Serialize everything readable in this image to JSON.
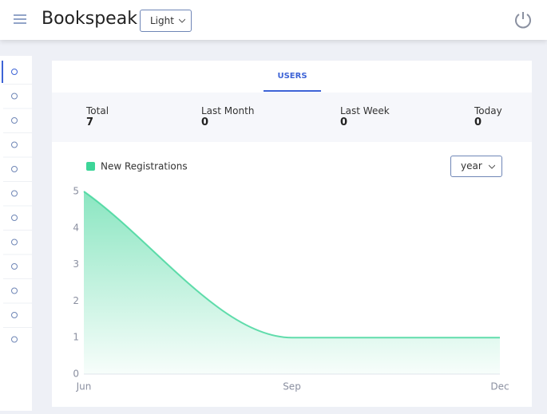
{
  "header": {
    "title": "Bookspeak",
    "theme": "Light"
  },
  "tab": "USERS",
  "stats": [
    {
      "label": "Total",
      "value": 7
    },
    {
      "label": "Last Month",
      "value": 0
    },
    {
      "label": "Last Week",
      "value": 0
    },
    {
      "label": "Today",
      "value": 0
    }
  ],
  "range": "year",
  "chart_data": {
    "type": "area",
    "categories": [
      "Jun",
      "Sep",
      "Dec"
    ],
    "series": [
      {
        "name": "New Registrations",
        "color": "#3dd598",
        "values": [
          5,
          1,
          1
        ]
      }
    ],
    "ylim": [
      0,
      5
    ],
    "yticks": [
      0,
      1,
      2,
      3,
      4,
      5
    ],
    "grid": false
  }
}
